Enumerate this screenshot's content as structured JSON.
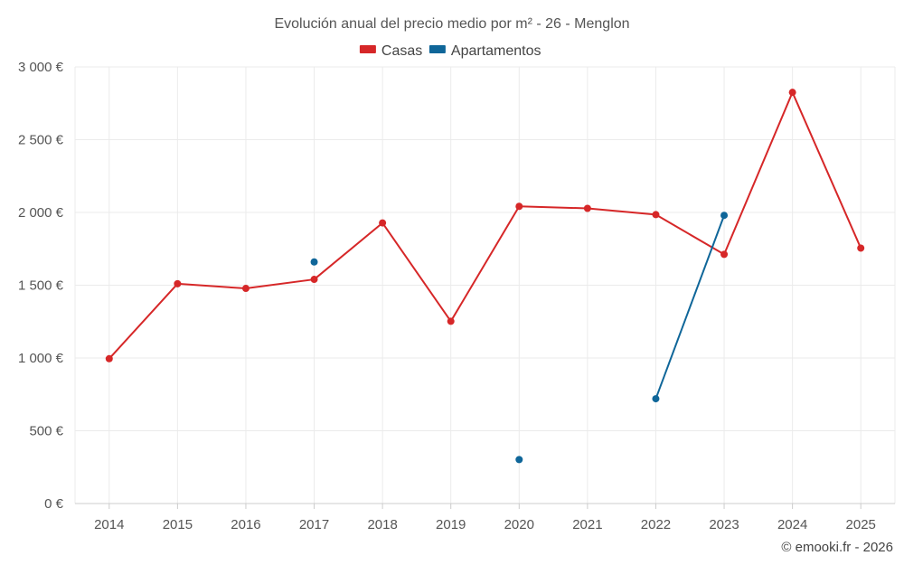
{
  "chart_data": {
    "type": "line",
    "title": "Evolución anual del precio medio por m² - 26 - Menglon",
    "xlabel": "",
    "ylabel": "",
    "categories": [
      "2014",
      "2015",
      "2016",
      "2017",
      "2018",
      "2019",
      "2020",
      "2021",
      "2022",
      "2023",
      "2024",
      "2025"
    ],
    "ylim": [
      0,
      3000
    ],
    "yticks": [
      0,
      500,
      1000,
      1500,
      2000,
      2500,
      3000
    ],
    "ytick_labels": [
      "0 €",
      "500 €",
      "1 000 €",
      "1 500 €",
      "2 000 €",
      "2 500 €",
      "3 000 €"
    ],
    "grid": true,
    "legend_position": "top-center",
    "series": [
      {
        "name": "Casas",
        "color": "#d62728",
        "values": [
          995,
          1510,
          1478,
          1540,
          1928,
          1252,
          2042,
          2028,
          1985,
          1712,
          2825,
          1755
        ]
      },
      {
        "name": "Apartamentos",
        "color": "#0f6699",
        "values": [
          null,
          null,
          null,
          1660,
          null,
          null,
          302,
          null,
          720,
          1980,
          null,
          null
        ]
      }
    ],
    "credit": "© emooki.fr - 2026"
  }
}
